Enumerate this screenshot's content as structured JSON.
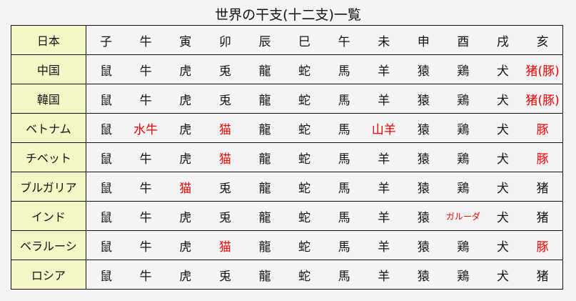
{
  "title": "世界の干支(十二支)一覧",
  "accent_red": "#ee0000",
  "label_bg": "#f5f6c6",
  "rows": [
    {
      "country": "日本",
      "cells": [
        {
          "t": "子"
        },
        {
          "t": "牛"
        },
        {
          "t": "寅"
        },
        {
          "t": "卯"
        },
        {
          "t": "辰"
        },
        {
          "t": "巳"
        },
        {
          "t": "午"
        },
        {
          "t": "未"
        },
        {
          "t": "申"
        },
        {
          "t": "酉"
        },
        {
          "t": "戌"
        },
        {
          "t": "亥"
        }
      ]
    },
    {
      "country": "中国",
      "cells": [
        {
          "t": "鼠"
        },
        {
          "t": "牛"
        },
        {
          "t": "虎"
        },
        {
          "t": "兎"
        },
        {
          "t": "龍"
        },
        {
          "t": "蛇"
        },
        {
          "t": "馬"
        },
        {
          "t": "羊"
        },
        {
          "t": "猿"
        },
        {
          "t": "鶏"
        },
        {
          "t": "犬"
        },
        {
          "t": "猪(豚)",
          "red": true
        }
      ]
    },
    {
      "country": "韓国",
      "cells": [
        {
          "t": "鼠"
        },
        {
          "t": "牛"
        },
        {
          "t": "虎"
        },
        {
          "t": "兎"
        },
        {
          "t": "龍"
        },
        {
          "t": "蛇"
        },
        {
          "t": "馬"
        },
        {
          "t": "羊"
        },
        {
          "t": "猿"
        },
        {
          "t": "鶏"
        },
        {
          "t": "犬"
        },
        {
          "t": "猪(豚)",
          "red": true
        }
      ]
    },
    {
      "country": "ベトナム",
      "cells": [
        {
          "t": "鼠"
        },
        {
          "t": "水牛",
          "red": true
        },
        {
          "t": "虎"
        },
        {
          "t": "猫",
          "red": true
        },
        {
          "t": "龍"
        },
        {
          "t": "蛇"
        },
        {
          "t": "馬"
        },
        {
          "t": "山羊",
          "red": true
        },
        {
          "t": "猿"
        },
        {
          "t": "鶏"
        },
        {
          "t": "犬"
        },
        {
          "t": "豚",
          "red": true
        }
      ]
    },
    {
      "country": "チベット",
      "cells": [
        {
          "t": "鼠"
        },
        {
          "t": "牛"
        },
        {
          "t": "虎"
        },
        {
          "t": "猫",
          "red": true
        },
        {
          "t": "龍"
        },
        {
          "t": "蛇"
        },
        {
          "t": "馬"
        },
        {
          "t": "羊"
        },
        {
          "t": "猿"
        },
        {
          "t": "鶏"
        },
        {
          "t": "犬"
        },
        {
          "t": "豚",
          "red": true
        }
      ]
    },
    {
      "country": "ブルガリア",
      "cells": [
        {
          "t": "鼠"
        },
        {
          "t": "牛"
        },
        {
          "t": "猫",
          "red": true
        },
        {
          "t": "兎"
        },
        {
          "t": "龍"
        },
        {
          "t": "蛇"
        },
        {
          "t": "馬"
        },
        {
          "t": "羊"
        },
        {
          "t": "猿"
        },
        {
          "t": "鶏"
        },
        {
          "t": "犬"
        },
        {
          "t": "猪"
        }
      ]
    },
    {
      "country": "インド",
      "cells": [
        {
          "t": "鼠"
        },
        {
          "t": "牛"
        },
        {
          "t": "虎"
        },
        {
          "t": "兎"
        },
        {
          "t": "龍"
        },
        {
          "t": "蛇"
        },
        {
          "t": "馬"
        },
        {
          "t": "羊"
        },
        {
          "t": "猿"
        },
        {
          "t": "ガルーダ",
          "red": true,
          "small": true
        },
        {
          "t": "犬"
        },
        {
          "t": "猪"
        }
      ]
    },
    {
      "country": "ベラルーシ",
      "cells": [
        {
          "t": "鼠"
        },
        {
          "t": "牛"
        },
        {
          "t": "虎"
        },
        {
          "t": "猫",
          "red": true
        },
        {
          "t": "龍"
        },
        {
          "t": "蛇"
        },
        {
          "t": "馬"
        },
        {
          "t": "羊"
        },
        {
          "t": "猿"
        },
        {
          "t": "鶏"
        },
        {
          "t": "犬"
        },
        {
          "t": "豚",
          "red": true
        }
      ]
    },
    {
      "country": "ロシア",
      "cells": [
        {
          "t": "鼠"
        },
        {
          "t": "牛"
        },
        {
          "t": "虎"
        },
        {
          "t": "兎"
        },
        {
          "t": "龍"
        },
        {
          "t": "蛇"
        },
        {
          "t": "馬"
        },
        {
          "t": "羊"
        },
        {
          "t": "猿"
        },
        {
          "t": "鶏"
        },
        {
          "t": "犬"
        },
        {
          "t": "猪"
        }
      ]
    }
  ]
}
